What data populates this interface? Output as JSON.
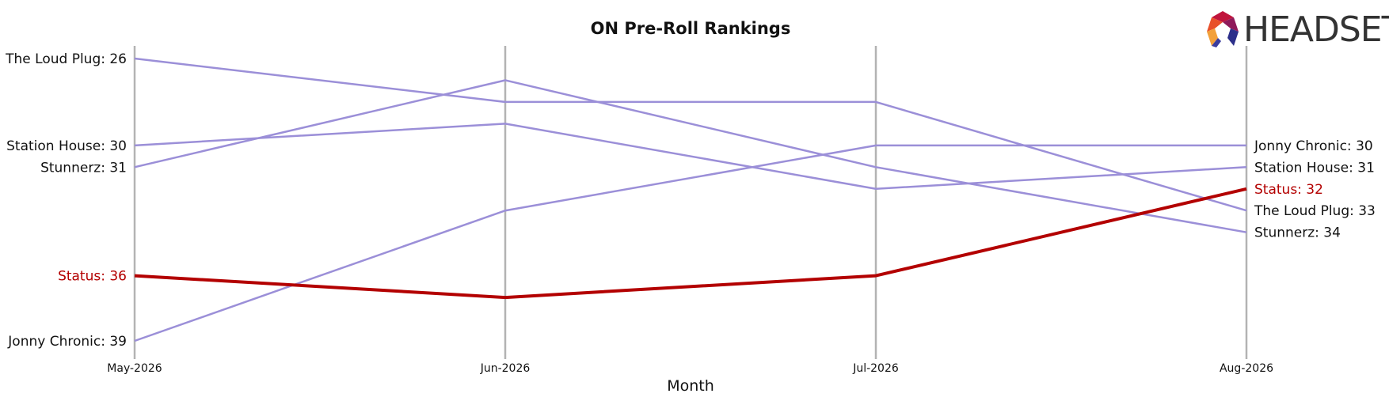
{
  "logo": {
    "text": "HEADSET"
  },
  "colors": {
    "highlight": "#b30000",
    "other": "#9b8fd8",
    "axis": "#b3b3b3"
  },
  "chart_data": {
    "type": "line",
    "title": "ON Pre-Roll Rankings",
    "xlabel": "Month",
    "ylabel": "",
    "categories": [
      "May-2026",
      "Jun-2026",
      "Jul-2026",
      "Aug-2026"
    ],
    "y_inverted": true,
    "ylim": [
      26,
      39
    ],
    "grid": "vertical",
    "series": [
      {
        "name": "The Loud Plug",
        "values": [
          26,
          28,
          28,
          33
        ],
        "highlight": false,
        "start_label": "The Loud Plug: 26",
        "end_label": "The Loud Plug: 33"
      },
      {
        "name": "Station House",
        "values": [
          30,
          29,
          32,
          31
        ],
        "highlight": false,
        "start_label": "Station House: 30",
        "end_label": "Station House: 31"
      },
      {
        "name": "Stunnerz",
        "values": [
          31,
          27,
          31,
          34
        ],
        "highlight": false,
        "start_label": "Stunnerz: 31",
        "end_label": "Stunnerz: 34"
      },
      {
        "name": "Status",
        "values": [
          36,
          37,
          36,
          32
        ],
        "highlight": true,
        "start_label": "Status: 36",
        "end_label": "Status: 32"
      },
      {
        "name": "Jonny Chronic",
        "values": [
          39,
          33,
          30,
          30
        ],
        "highlight": false,
        "start_label": "Jonny Chronic: 39",
        "end_label": "Jonny Chronic: 30"
      }
    ]
  }
}
